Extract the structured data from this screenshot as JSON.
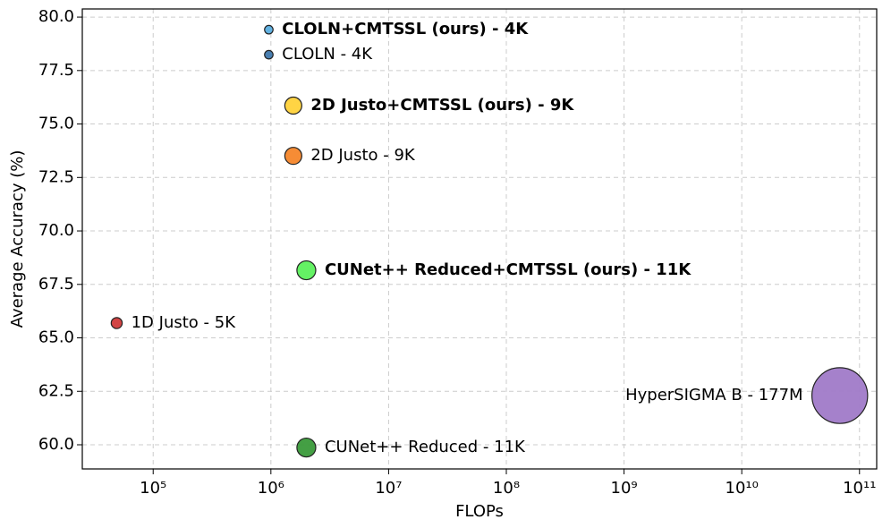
{
  "chart_data": {
    "type": "scatter",
    "xlabel": "FLOPs",
    "ylabel": "Average Accuracy (%)",
    "xscale": "log",
    "grid": true,
    "xlim": [
      25000,
      140000000000
    ],
    "ylim": [
      58.87,
      80.38
    ],
    "xticks": [
      {
        "value": 100000,
        "label": "10⁵"
      },
      {
        "value": 1000000,
        "label": "10⁶"
      },
      {
        "value": 10000000,
        "label": "10⁷"
      },
      {
        "value": 100000000,
        "label": "10⁸"
      },
      {
        "value": 1000000000,
        "label": "10⁹"
      },
      {
        "value": 10000000000,
        "label": "10¹⁰"
      },
      {
        "value": 100000000000,
        "label": "10¹¹"
      }
    ],
    "yticks": [
      {
        "value": 60,
        "label": "60.0"
      },
      {
        "value": 62.5,
        "label": "62.5"
      },
      {
        "value": 65,
        "label": "65.0"
      },
      {
        "value": 67.5,
        "label": "67.5"
      },
      {
        "value": 70,
        "label": "70.0"
      },
      {
        "value": 72.5,
        "label": "72.5"
      },
      {
        "value": 75,
        "label": "75.0"
      },
      {
        "value": 77.5,
        "label": "77.5"
      },
      {
        "value": 80,
        "label": "80.0"
      }
    ],
    "points": [
      {
        "label": "CLOLN+CMTSSL (ours) - 4K",
        "x": 960000,
        "y": 79.41,
        "size": 4000,
        "color": "#5aaee0",
        "bold": true
      },
      {
        "label": "CLOLN - 4K",
        "x": 960000,
        "y": 78.24,
        "size": 4000,
        "color": "#3f78ad",
        "bold": false
      },
      {
        "label": "2D Justo+CMTSSL (ours) - 9K",
        "x": 1550000,
        "y": 75.86,
        "size": 9000,
        "color": "#ffd23a",
        "bold": true
      },
      {
        "label": "2D Justo - 9K",
        "x": 1550000,
        "y": 73.51,
        "size": 9000,
        "color": "#f5862a",
        "bold": false
      },
      {
        "label": "CUNet++ Reduced+CMTSSL (ours) - 11K",
        "x": 2000000,
        "y": 68.16,
        "size": 11000,
        "color": "#5cf05c",
        "bold": true
      },
      {
        "label": "1D Justo - 5K",
        "x": 49000,
        "y": 65.69,
        "size": 5000,
        "color": "#d03a3a",
        "bold": false
      },
      {
        "label": "HyperSIGMA B - 177M",
        "x": 68000000000,
        "y": 62.3,
        "size": 177000000,
        "color": "#a07ac8",
        "bold": false
      },
      {
        "label": "CUNet++ Reduced - 11K",
        "x": 2000000,
        "y": 59.87,
        "size": 11000,
        "color": "#3a9a3a",
        "bold": false
      }
    ]
  }
}
